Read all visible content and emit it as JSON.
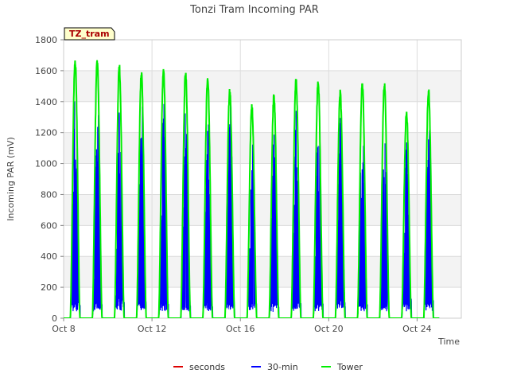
{
  "chart_data": {
    "type": "line",
    "title": "Tonzi Tram Incoming PAR",
    "xlabel": "Time",
    "ylabel": "Incoming PAR (mV)",
    "badge": "TZ_tram",
    "x_start": "Oct 8",
    "xlim_days": [
      0,
      18
    ],
    "ylim": [
      0,
      1800
    ],
    "yticks": [
      0,
      200,
      400,
      600,
      800,
      1000,
      1200,
      1400,
      1600,
      1800
    ],
    "xticks": [
      {
        "day": 0,
        "label": "Oct 8"
      },
      {
        "day": 4,
        "label": "Oct 12"
      },
      {
        "day": 8,
        "label": "Oct 16"
      },
      {
        "day": 12,
        "label": "Oct 20"
      },
      {
        "day": 16,
        "label": "Oct 24"
      }
    ],
    "grid": true,
    "legend_position": "bottom-center",
    "series": [
      {
        "name": "seconds",
        "color": "#dd0000",
        "daily_peaks": []
      },
      {
        "name": "30-min",
        "color": "#0000ff",
        "daily_peaks": [
          1490,
          1490,
          1450,
          1430,
          1430,
          1410,
          1320,
          1470,
          1270,
          1280,
          1360,
          1340,
          1340,
          1360,
          1270,
          1170,
          1280
        ]
      },
      {
        "name": "Tower",
        "color": "#00ee00",
        "daily_peaks": [
          1690,
          1680,
          1650,
          1610,
          1630,
          1610,
          1580,
          1500,
          1390,
          1460,
          1560,
          1550,
          1480,
          1540,
          1530,
          1350,
          1490
        ]
      }
    ]
  }
}
